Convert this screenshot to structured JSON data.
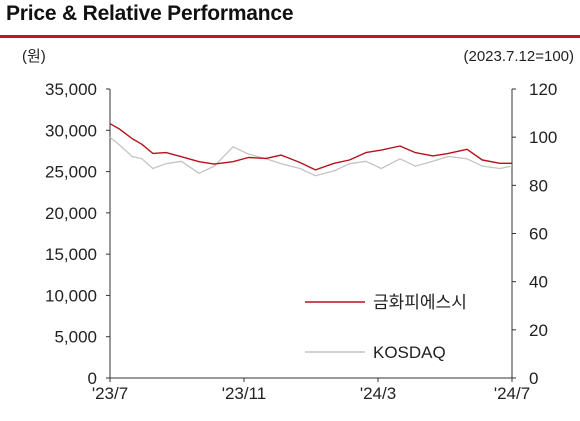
{
  "header": {
    "title": "Price & Relative Performance"
  },
  "chart_data": {
    "type": "line",
    "title": "Price & Relative Performance",
    "left_unit_label": "(원)",
    "right_unit_label": "(2023.7.12=100)",
    "y_left": {
      "ylim": [
        0,
        35000
      ],
      "ticks": [
        0,
        5000,
        10000,
        15000,
        20000,
        25000,
        30000,
        35000
      ],
      "tick_labels": [
        "0",
        "5,000",
        "10,000",
        "15,000",
        "20,000",
        "25,000",
        "30,000",
        "35,000"
      ]
    },
    "y_right": {
      "ylim": [
        0,
        120
      ],
      "ticks": [
        0,
        20,
        40,
        60,
        80,
        100,
        120
      ],
      "tick_labels": [
        "0",
        "20",
        "40",
        "60",
        "80",
        "100",
        "120"
      ]
    },
    "x_tick_labels": [
      "'23/7",
      "'23/11",
      "'24/3",
      "'24/7"
    ],
    "grid": false,
    "legend_position": "bottom-right",
    "series": [
      {
        "name": "금화피에스시",
        "axis": "left",
        "color": "#b5121b",
        "x": [
          "2023-07-12",
          "2023-07-20",
          "2023-08-01",
          "2023-08-10",
          "2023-08-20",
          "2023-09-01",
          "2023-09-15",
          "2023-10-01",
          "2023-10-15",
          "2023-11-01",
          "2023-11-15",
          "2023-12-01",
          "2023-12-15",
          "2024-01-01",
          "2024-01-15",
          "2024-02-01",
          "2024-02-15",
          "2024-03-01",
          "2024-03-15",
          "2024-04-01",
          "2024-04-15",
          "2024-05-01",
          "2024-05-15",
          "2024-06-01",
          "2024-06-15",
          "2024-07-01",
          "2024-07-12"
        ],
        "values": [
          30800,
          30200,
          29000,
          28300,
          27200,
          27300,
          26800,
          26200,
          25900,
          26200,
          26700,
          26600,
          27000,
          26100,
          25200,
          26000,
          26400,
          27300,
          27600,
          28100,
          27300,
          26900,
          27200,
          27700,
          26400,
          26000,
          26000
        ]
      },
      {
        "name": "KOSDAQ",
        "axis": "right",
        "color": "#c4c4c4",
        "x": [
          "2023-07-12",
          "2023-07-20",
          "2023-08-01",
          "2023-08-10",
          "2023-08-20",
          "2023-09-01",
          "2023-09-15",
          "2023-10-01",
          "2023-10-15",
          "2023-11-01",
          "2023-11-15",
          "2023-12-01",
          "2023-12-15",
          "2024-01-01",
          "2024-01-15",
          "2024-02-01",
          "2024-02-15",
          "2024-03-01",
          "2024-03-15",
          "2024-04-01",
          "2024-04-15",
          "2024-05-01",
          "2024-05-15",
          "2024-06-01",
          "2024-06-15",
          "2024-07-01",
          "2024-07-12"
        ],
        "values": [
          100,
          97,
          92,
          91,
          87,
          89,
          90,
          85,
          88,
          96,
          93,
          91,
          89,
          87,
          84,
          86,
          89,
          90,
          87,
          91,
          88,
          90,
          92,
          91,
          88,
          87,
          88
        ]
      }
    ]
  }
}
